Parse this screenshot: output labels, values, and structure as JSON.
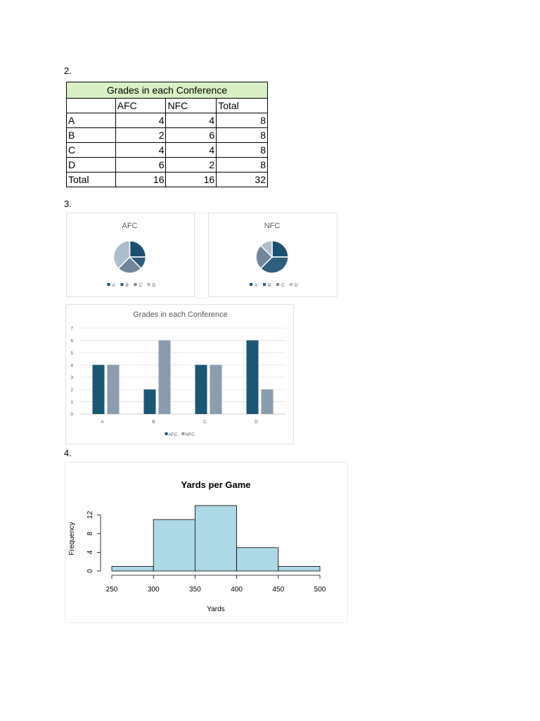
{
  "sections": {
    "s2": "2.",
    "s3": "3.",
    "s4": "4."
  },
  "table": {
    "title": "Grades in each Conference",
    "headers": [
      "",
      "AFC",
      "NFC",
      "Total"
    ],
    "rows": [
      [
        "A",
        "4",
        "4",
        "8"
      ],
      [
        "B",
        "2",
        "6",
        "8"
      ],
      [
        "C",
        "4",
        "4",
        "8"
      ],
      [
        "D",
        "6",
        "2",
        "8"
      ],
      [
        "Total",
        "16",
        "16",
        "32"
      ]
    ],
    "header_color": "#d9f0c4"
  },
  "colors": {
    "A": "#1b4f6e",
    "B": "#2f5f7c",
    "C": "#71869b",
    "D": "#aebdcb",
    "afc_bar": "#1b5675",
    "nfc_bar": "#8a9cad",
    "hist_fill": "#add8e6"
  },
  "chart_data": [
    {
      "type": "pie",
      "title": "AFC",
      "categories": [
        "A",
        "B",
        "C",
        "D"
      ],
      "values": [
        4,
        2,
        4,
        6
      ],
      "legend": [
        "A",
        "B",
        "C",
        "D"
      ],
      "legend_position": "bottom"
    },
    {
      "type": "pie",
      "title": "NFC",
      "categories": [
        "A",
        "B",
        "C",
        "D"
      ],
      "values": [
        4,
        6,
        4,
        2
      ],
      "legend": [
        "A",
        "B",
        "C",
        "D"
      ],
      "legend_position": "bottom"
    },
    {
      "type": "bar",
      "title": "Grades in each Conference",
      "categories": [
        "A",
        "B",
        "C",
        "D"
      ],
      "series": [
        {
          "name": "AFC",
          "values": [
            4,
            2,
            4,
            6
          ]
        },
        {
          "name": "NFC",
          "values": [
            4,
            6,
            4,
            2
          ]
        }
      ],
      "ylim": [
        0,
        7
      ],
      "yticks": [
        "0",
        "1",
        "2",
        "3",
        "4",
        "5",
        "6",
        "7"
      ],
      "grid": true,
      "legend_position": "bottom"
    },
    {
      "type": "bar",
      "subtype": "histogram",
      "title": "Yards per Game",
      "xlabel": "Yards",
      "ylabel": "Frequency",
      "bins": [
        [
          250,
          300
        ],
        [
          300,
          350
        ],
        [
          350,
          400
        ],
        [
          400,
          450
        ],
        [
          450,
          500
        ]
      ],
      "values": [
        1,
        11,
        14,
        5,
        1
      ],
      "xlim": [
        250,
        500
      ],
      "xticks": [
        "250",
        "300",
        "350",
        "400",
        "450",
        "500"
      ],
      "ylim": [
        0,
        14
      ],
      "yticks": [
        "0",
        "4",
        "8",
        "12"
      ],
      "grid": false
    }
  ]
}
